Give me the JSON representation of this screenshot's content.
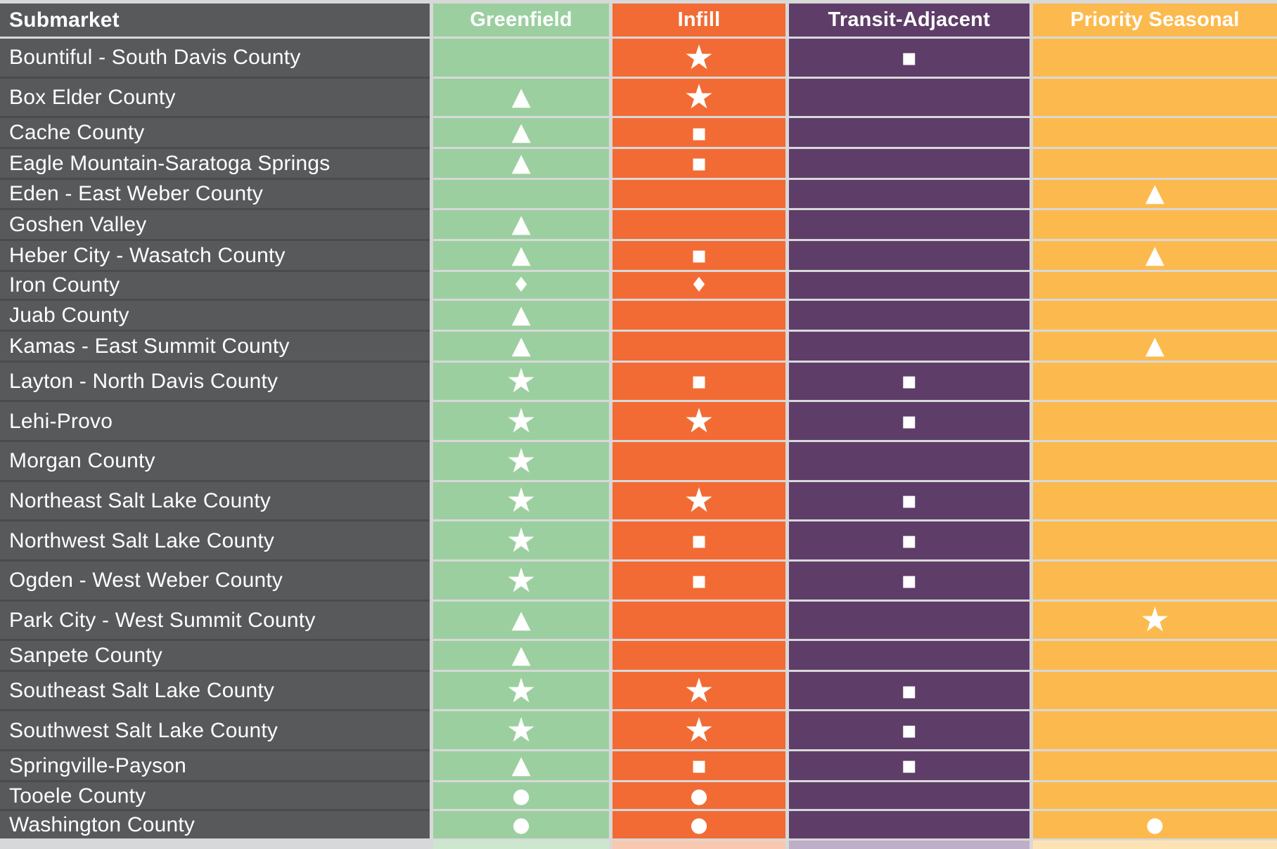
{
  "chart_data": {
    "type": "table",
    "header": {
      "submarket_label": "Submarket",
      "categories": [
        "Greenfield",
        "Infill",
        "Transit-Adjacent",
        "Priority Seasonal"
      ]
    },
    "marker_glyphs": {
      "star": "★",
      "triangle": "▲",
      "square": "▪",
      "diamond": "♦",
      "circle": "●"
    },
    "rows": [
      {
        "label": "Bountiful - South Davis County",
        "markers": [
          "",
          "star",
          "square",
          ""
        ]
      },
      {
        "label": "Box Elder County",
        "markers": [
          "triangle",
          "star",
          "",
          ""
        ]
      },
      {
        "label": "Cache County",
        "markers": [
          "triangle",
          "square",
          "",
          ""
        ]
      },
      {
        "label": "Eagle Mountain-Saratoga Springs",
        "markers": [
          "triangle",
          "square",
          "",
          ""
        ]
      },
      {
        "label": "Eden - East Weber County",
        "markers": [
          "",
          "",
          "",
          "triangle"
        ]
      },
      {
        "label": "Goshen Valley",
        "markers": [
          "triangle",
          "",
          "",
          ""
        ]
      },
      {
        "label": "Heber City - Wasatch County",
        "markers": [
          "triangle",
          "square",
          "",
          "triangle"
        ]
      },
      {
        "label": "Iron County",
        "markers": [
          "diamond",
          "diamond",
          "",
          ""
        ]
      },
      {
        "label": "Juab County",
        "markers": [
          "triangle",
          "",
          "",
          ""
        ]
      },
      {
        "label": "Kamas - East Summit County",
        "markers": [
          "triangle",
          "",
          "",
          "triangle"
        ]
      },
      {
        "label": "Layton - North Davis County",
        "markers": [
          "star",
          "square",
          "square",
          ""
        ]
      },
      {
        "label": "Lehi-Provo",
        "markers": [
          "star",
          "star",
          "square",
          ""
        ]
      },
      {
        "label": "Morgan County",
        "markers": [
          "star",
          "",
          "",
          ""
        ]
      },
      {
        "label": "Northeast Salt Lake County",
        "markers": [
          "star",
          "star",
          "square",
          ""
        ]
      },
      {
        "label": "Northwest Salt Lake County",
        "markers": [
          "star",
          "square",
          "square",
          ""
        ]
      },
      {
        "label": "Ogden - West Weber County",
        "markers": [
          "star",
          "square",
          "square",
          ""
        ]
      },
      {
        "label": "Park City - West Summit County",
        "markers": [
          "triangle",
          "",
          "",
          "star"
        ]
      },
      {
        "label": "Sanpete County",
        "markers": [
          "triangle",
          "",
          "",
          ""
        ]
      },
      {
        "label": "Southeast Salt Lake County",
        "markers": [
          "star",
          "star",
          "square",
          ""
        ]
      },
      {
        "label": "Southwest Salt Lake County",
        "markers": [
          "star",
          "star",
          "square",
          ""
        ]
      },
      {
        "label": "Springville-Payson",
        "markers": [
          "triangle",
          "square",
          "square",
          ""
        ]
      },
      {
        "label": "Tooele County",
        "markers": [
          "circle",
          "circle",
          "",
          ""
        ]
      },
      {
        "label": "Washington County",
        "markers": [
          "circle",
          "circle",
          "",
          "circle"
        ]
      }
    ]
  },
  "colors": {
    "submarket_column": "#58595B",
    "greenfield": "#9CCFA0",
    "infill": "#F26B35",
    "transit_adjacent": "#5E3D68",
    "priority_seasonal": "#FCBA4E",
    "gridline": "#D8D8D8",
    "dark_row_separator": "#4A4B4D",
    "marker": "#FFFFFF",
    "bottom_crop_tints": [
      "#D6D7D8",
      "#CDE7CF",
      "#F8C9B0",
      "#BFAEC8",
      "#FDE3B4"
    ]
  }
}
